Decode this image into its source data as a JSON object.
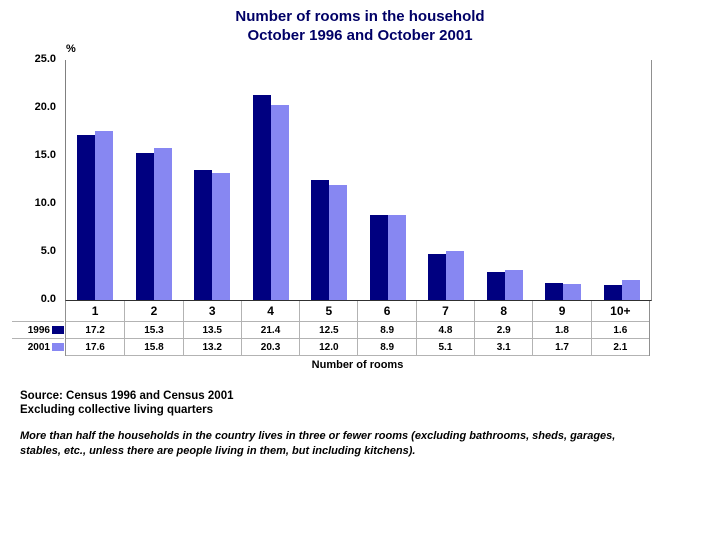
{
  "title": {
    "line1": "Number of rooms in the household",
    "line2": "October 1996 and October 2001"
  },
  "chart_data": {
    "type": "bar",
    "categories": [
      "1",
      "2",
      "3",
      "4",
      "5",
      "6",
      "7",
      "8",
      "9",
      "10+"
    ],
    "series": [
      {
        "name": "1996",
        "color": "#000080",
        "values": [
          17.2,
          15.3,
          13.5,
          21.4,
          12.5,
          8.9,
          4.8,
          2.9,
          1.8,
          1.6
        ]
      },
      {
        "name": "2001",
        "color": "#8787f2",
        "values": [
          17.6,
          15.8,
          13.2,
          20.3,
          12.0,
          8.9,
          5.1,
          3.1,
          1.7,
          2.1
        ]
      }
    ],
    "title": "Number of rooms in the household October 1996 and October 2001",
    "xlabel": "Number of rooms",
    "ylabel": "%",
    "ylim": [
      0,
      25
    ],
    "yticks": [
      "25.0",
      "20.0",
      "15.0",
      "10.0",
      "5.0",
      "0.0"
    ],
    "grid": false,
    "legend_position": "table-left",
    "data_table_shown": true
  },
  "footer": {
    "source_line1": "Source: Census 1996 and Census 2001",
    "source_line2": "Excluding collective living quarters",
    "note_line1": "More than half the households in the country lives in three or fewer rooms (excluding bathrooms, sheds, garages,",
    "note_line2": "stables, etc., unless there are people living in them, but including kitchens)."
  },
  "colors": {
    "title_text": "#000066",
    "bar_1996": "#000080",
    "bar_2001": "#8787f2",
    "axis_line": "#808080",
    "table_grid": "#b3b3b3"
  }
}
